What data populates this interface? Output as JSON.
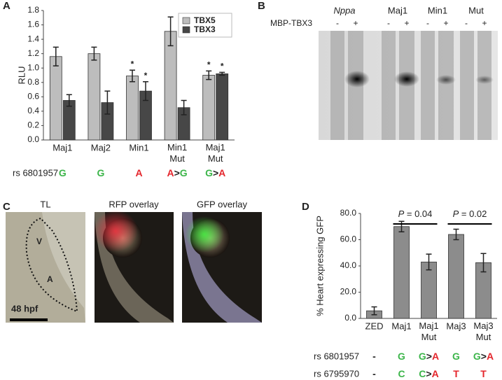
{
  "chart_data": [
    {
      "type": "bar",
      "panel": "A",
      "ylabel": "RLU",
      "categories": [
        "Maj1",
        "Maj2",
        "Min1",
        "Min1\nMut",
        "Maj1\nMut"
      ],
      "series": [
        {
          "name": "TBX5",
          "color": "#bdbdbd",
          "values": [
            1.16,
            1.2,
            0.89,
            1.51,
            0.9
          ],
          "errors": [
            0.13,
            0.09,
            0.08,
            0.2,
            0.06
          ]
        },
        {
          "name": "TBX3",
          "color": "#474747",
          "values": [
            0.55,
            0.52,
            0.68,
            0.45,
            0.92
          ],
          "errors": [
            0.08,
            0.16,
            0.13,
            0.1,
            0.02
          ]
        }
      ],
      "ylim": [
        0,
        1.8
      ],
      "yticks": [
        {
          "value": 0,
          "label": "0.0"
        },
        0.2,
        0.4,
        0.6,
        0.8,
        {
          "value": 1,
          "label": "1.0"
        },
        1.2,
        1.4,
        1.6,
        1.8
      ],
      "legend": "upper right",
      "annotations": [
        {
          "text": "*",
          "series": 0,
          "category": 2
        },
        {
          "text": "*",
          "series": 1,
          "category": 2
        },
        {
          "text": "*",
          "series": 0,
          "category": 4
        },
        {
          "text": "*",
          "series": 1,
          "category": 4
        }
      ],
      "genotypes": [
        {
          "label": "rs 6801957",
          "alleles": [
            "G",
            "G",
            "A",
            "A>G",
            "G>A"
          ]
        }
      ],
      "allele_colors": {
        "G": "#3cb54a",
        "C": "#3cb54a",
        "A": "#e4262c",
        "T": "#e4262c",
        ">": "#222222",
        "-": "#222222"
      }
    },
    {
      "type": "bar",
      "panel": "D",
      "ylabel": "% Heart expressing GFP",
      "categories": [
        "ZED",
        "Maj1",
        "Maj1\nMut",
        "Maj3",
        "Maj3\nMut"
      ],
      "series": [
        {
          "color": "#8c8c8c",
          "values": [
            5.8,
            70,
            43,
            64,
            42.5
          ],
          "errors": [
            3,
            4,
            6,
            4,
            7
          ]
        }
      ],
      "ylim": [
        0,
        80
      ],
      "yticks": [
        {
          "value": 0,
          "label": "0.0"
        },
        {
          "value": 20,
          "label": "20.0"
        },
        {
          "value": 40,
          "label": "40.0"
        },
        {
          "value": 60,
          "label": "60.0"
        },
        {
          "value": 80,
          "label": "80.0"
        }
      ],
      "brackets": [
        {
          "text": "P = 0.04",
          "from": 1,
          "to": 2
        },
        {
          "text": "P = 0.02",
          "from": 3,
          "to": 4
        }
      ],
      "genotypes": [
        {
          "label": "rs 6801957",
          "alleles": [
            "-",
            "G",
            "G>A",
            "G",
            "G>A"
          ]
        },
        {
          "label": "rs 6795970",
          "alleles": [
            "-",
            "C",
            "C>A",
            "T",
            "T"
          ]
        }
      ],
      "allele_colors": {
        "G": "#3cb54a",
        "C": "#3cb54a",
        "A": "#e4262c",
        "T": "#e4262c",
        ">": "#222222",
        "-": "#222222"
      }
    }
  ],
  "panel_b": {
    "panel": "B",
    "lanes": [
      "Nppa",
      "Maj1",
      "Min1",
      "Mut"
    ],
    "row_label": "MBP-TBX3",
    "signs": [
      "-",
      "+",
      "-",
      "+",
      "-",
      "+",
      "-",
      "+"
    ]
  },
  "panel_c": {
    "panel": "C",
    "images": [
      "TL",
      "RFP overlay",
      "GFP overlay"
    ],
    "labels": [
      "V",
      "A"
    ],
    "scale": "48 hpf"
  }
}
